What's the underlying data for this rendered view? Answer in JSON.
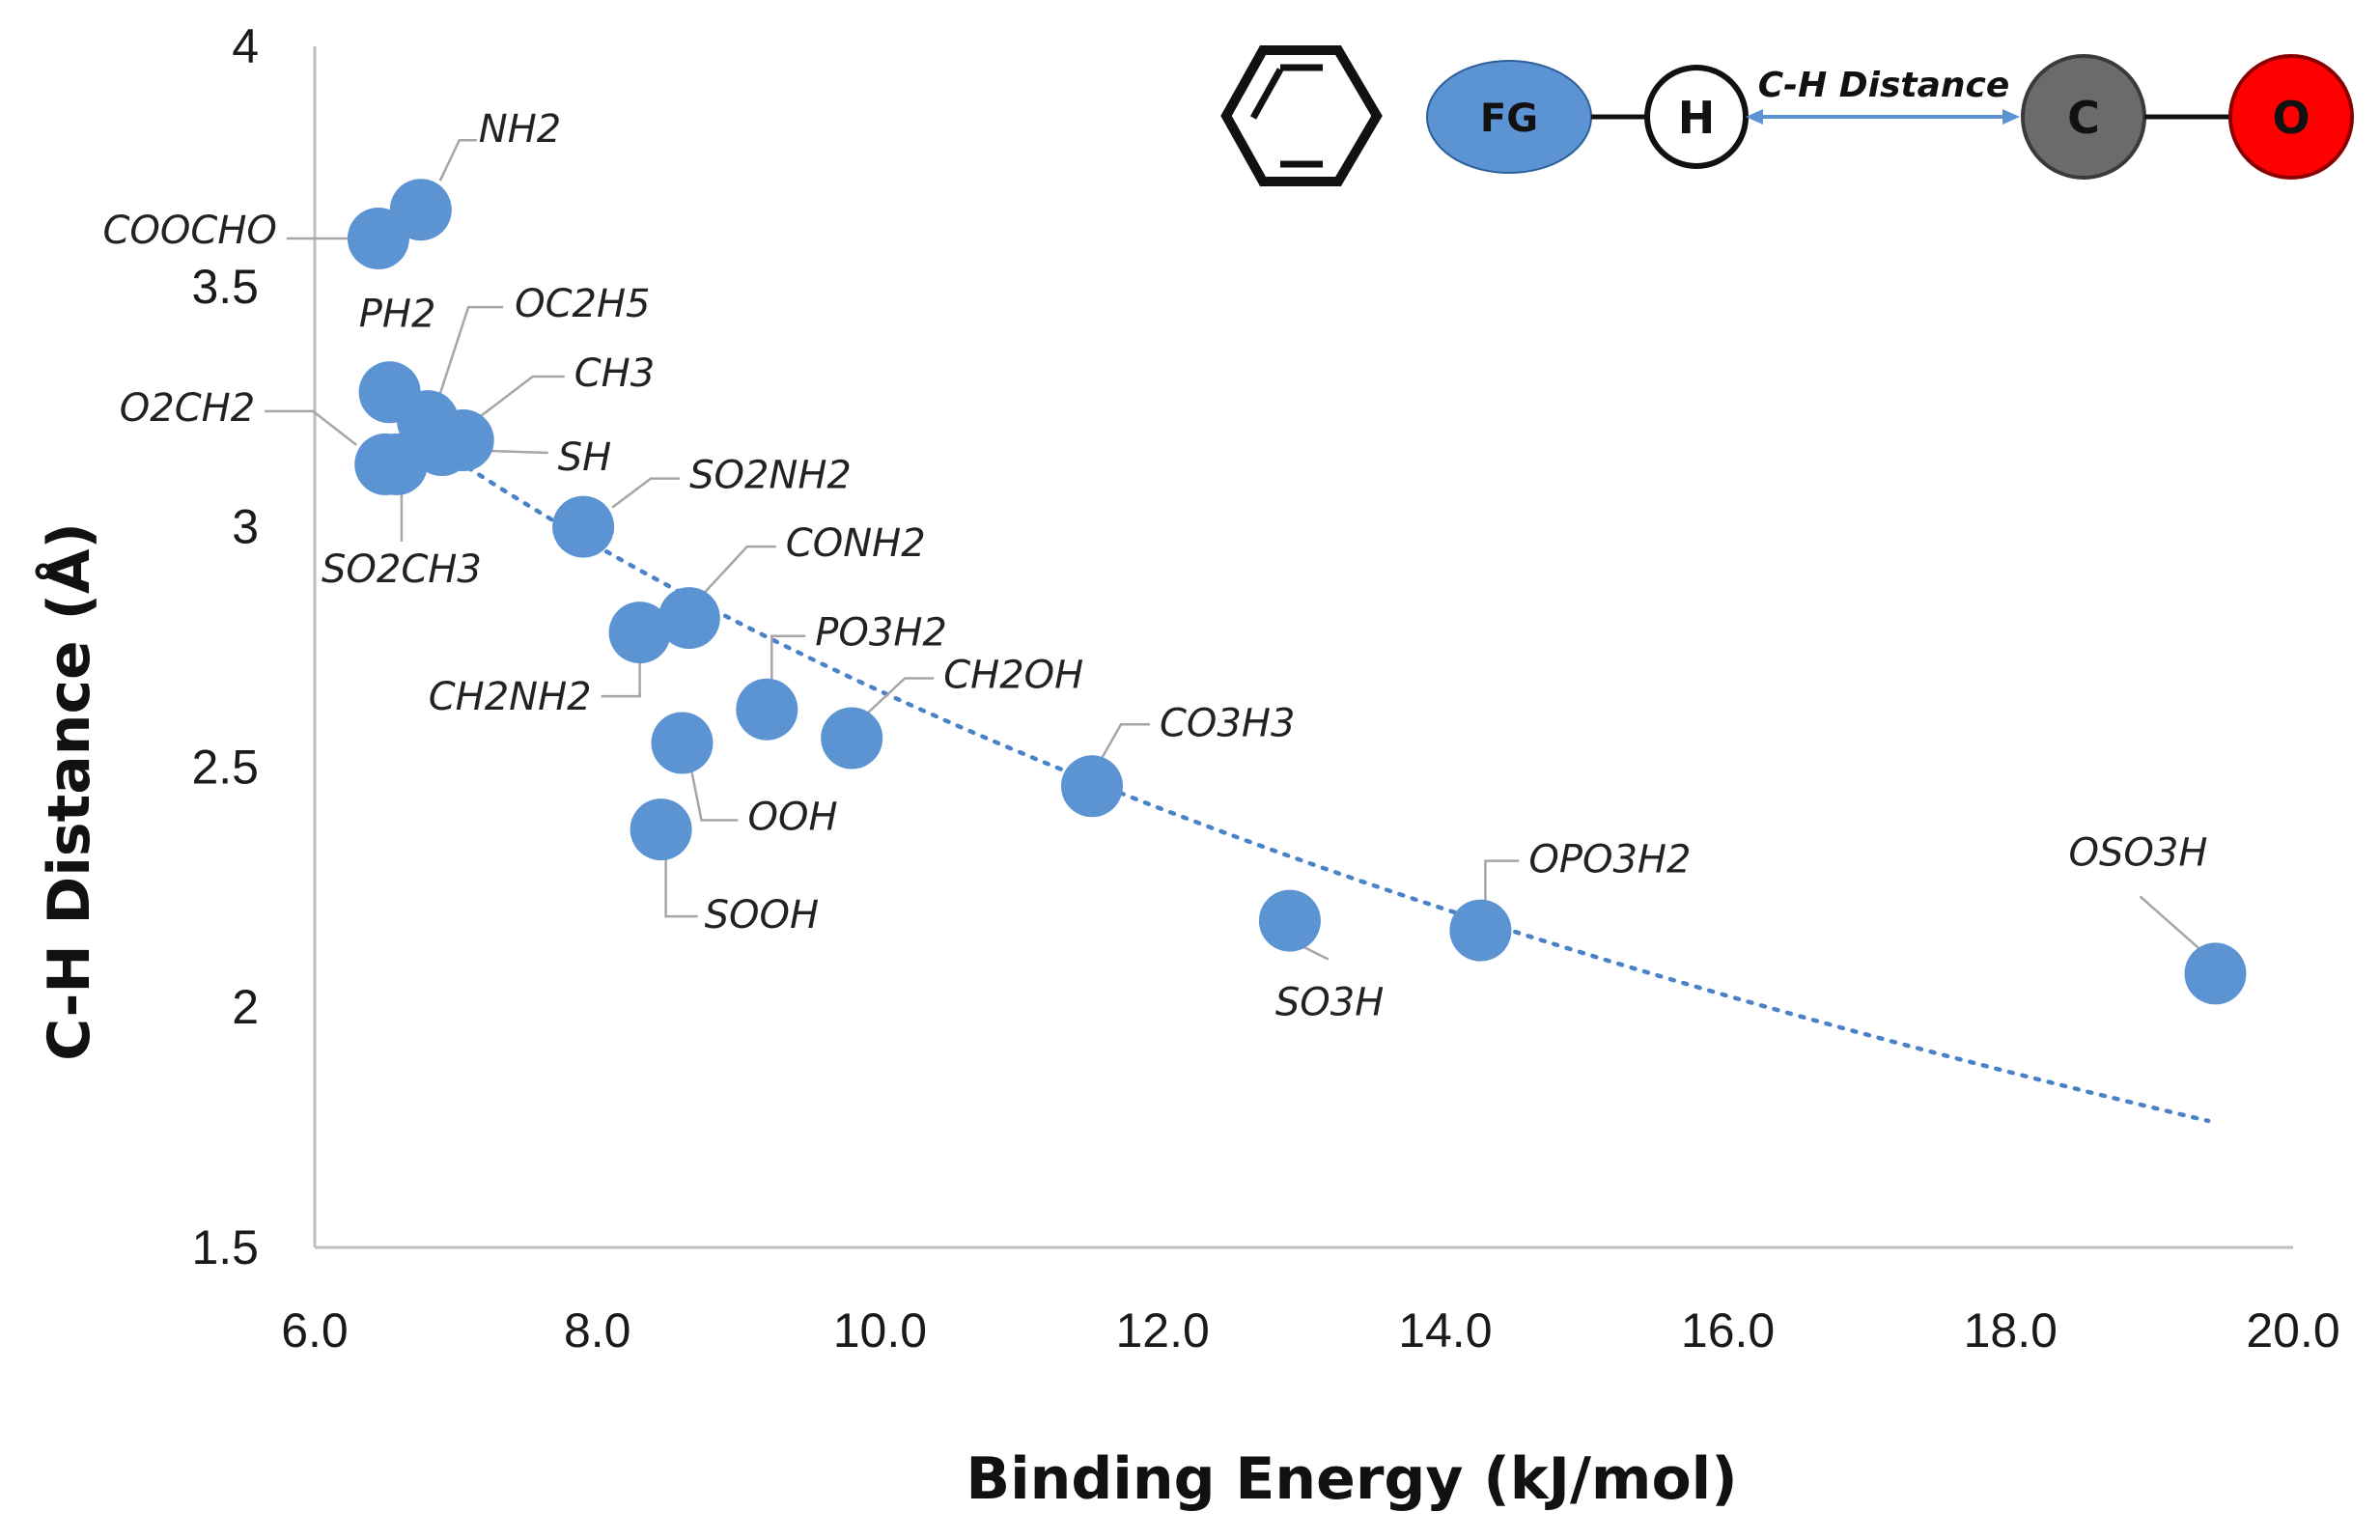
{
  "chart_data": {
    "type": "scatter",
    "title": "",
    "xlabel": "Binding Energy (kJ/mol)",
    "ylabel": "C-H Distance (Å)",
    "xlim": [
      6.0,
      20.0
    ],
    "ylim": [
      1.5,
      4.0
    ],
    "x_ticks": [
      "6.0",
      "8.0",
      "10.0",
      "12.0",
      "14.0",
      "16.0",
      "18.0",
      "20.0"
    ],
    "y_ticks": [
      "1.5",
      "2",
      "2.5",
      "3",
      "3.5",
      "4"
    ],
    "grid": false,
    "legend": "none",
    "point_color": "#5b93d3",
    "trendline": {
      "type": "logarithmic",
      "style": "dotted",
      "color": "#4a82c8",
      "a": 3.25,
      "b": -1.35,
      "x_start": 6.45,
      "x_end": 19.4
    },
    "points": [
      {
        "label": "NH2",
        "x": 6.75,
        "y": 3.66
      },
      {
        "label": "COOCHO",
        "x": 6.45,
        "y": 3.6
      },
      {
        "label": "PH2",
        "x": 6.53,
        "y": 3.28
      },
      {
        "label": "OC2H5",
        "x": 6.8,
        "y": 3.22
      },
      {
        "label": "CH3",
        "x": 7.05,
        "y": 3.18
      },
      {
        "label": "SH",
        "x": 6.9,
        "y": 3.17
      },
      {
        "label": "O2CH2",
        "x": 6.5,
        "y": 3.13
      },
      {
        "label": "SO2CH3",
        "x": 6.58,
        "y": 3.13
      },
      {
        "label": "SO2NH2",
        "x": 7.9,
        "y": 3.0
      },
      {
        "label": "CONH2",
        "x": 8.65,
        "y": 2.81
      },
      {
        "label": "CH2NH2",
        "x": 8.3,
        "y": 2.78
      },
      {
        "label": "PO3H2",
        "x": 9.2,
        "y": 2.62
      },
      {
        "label": "CH2OH",
        "x": 9.8,
        "y": 2.56
      },
      {
        "label": "OOH",
        "x": 8.6,
        "y": 2.55
      },
      {
        "label": "SOOH",
        "x": 8.45,
        "y": 2.37
      },
      {
        "label": "CO3H3",
        "x": 11.5,
        "y": 2.46
      },
      {
        "label": "SO3H",
        "x": 12.9,
        "y": 2.18
      },
      {
        "label": "OPO3H2",
        "x": 14.25,
        "y": 2.16
      },
      {
        "label": "OSO3H",
        "x": 19.45,
        "y": 2.07
      }
    ]
  },
  "schematic": {
    "fg_label": "FG",
    "h_label": "H",
    "distance_label": "C-H Distance",
    "c_label": "C",
    "o_label": "O",
    "colors": {
      "fg": "#5b93d3",
      "c": "#6b6b6b",
      "o": "#ff0000",
      "arrow": "#5b93d3"
    }
  }
}
